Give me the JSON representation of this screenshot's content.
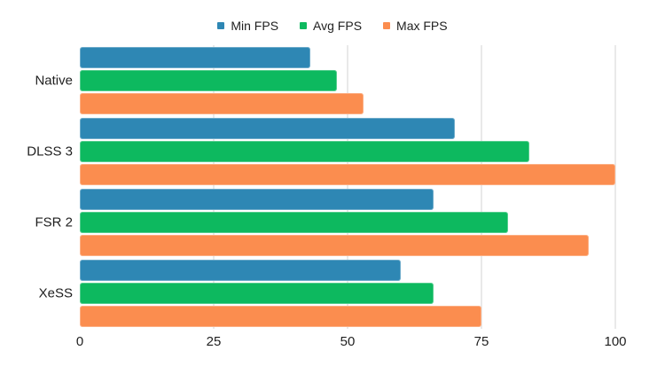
{
  "chart_data": {
    "type": "bar",
    "orientation": "horizontal",
    "title": "",
    "categories": [
      "Native",
      "DLSS 3",
      "FSR 2",
      "XeSS"
    ],
    "series": [
      {
        "name": "Min FPS",
        "color": "#2E87B4",
        "values": [
          43,
          70,
          66,
          60
        ]
      },
      {
        "name": "Avg FPS",
        "color": "#0DB95F",
        "values": [
          48,
          84,
          80,
          66
        ]
      },
      {
        "name": "Max FPS",
        "color": "#FB8D4F",
        "values": [
          53,
          100,
          95,
          75
        ]
      }
    ],
    "xlabel": "",
    "ylabel": "",
    "xlim": [
      0,
      100
    ],
    "x_ticks": [
      0,
      25,
      50,
      75,
      100
    ],
    "grid": "vertical",
    "gridline_color": "#e9e9e9",
    "legend_position": "top-center",
    "background_color": "#ffffff",
    "text_color": "#1f1f1f"
  }
}
